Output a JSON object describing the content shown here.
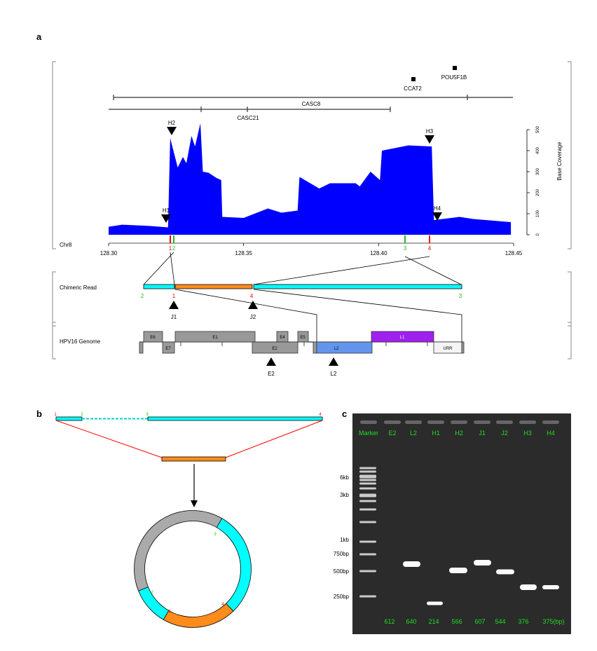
{
  "panels": {
    "a": "a",
    "b": "b",
    "c": "c"
  },
  "genes": {
    "pou5f1b": "POU5F1B",
    "ccat2": "CCAT2",
    "casc8": "CASC8",
    "casc21": "CASC21"
  },
  "chart_data": {
    "type": "area",
    "ylabel": "Base Coverage",
    "xlabel_track": "Chr8",
    "xlim": [
      128.3,
      128.45
    ],
    "ylim": [
      0,
      500
    ],
    "x_ticks": [
      "128.30",
      "128.35",
      "128.40",
      "128.45"
    ],
    "y_ticks": [
      "0",
      "100",
      "200",
      "300",
      "400",
      "500"
    ],
    "color": "#0000ff",
    "coverage": [
      [
        128.3,
        38
      ],
      [
        128.305,
        48
      ],
      [
        128.315,
        42
      ],
      [
        128.322,
        35
      ],
      [
        128.3228,
        460
      ],
      [
        128.3256,
        320
      ],
      [
        128.3275,
        370
      ],
      [
        128.3288,
        340
      ],
      [
        128.3307,
        470
      ],
      [
        128.332,
        420
      ],
      [
        128.334,
        530
      ],
      [
        128.3349,
        300
      ],
      [
        128.337,
        295
      ],
      [
        128.34,
        270
      ],
      [
        128.3417,
        260
      ],
      [
        128.3421,
        85
      ],
      [
        128.35,
        80
      ],
      [
        128.359,
        125
      ],
      [
        128.364,
        105
      ],
      [
        128.37,
        115
      ],
      [
        128.3707,
        275
      ],
      [
        128.378,
        220
      ],
      [
        128.382,
        245
      ],
      [
        128.3915,
        245
      ],
      [
        128.393,
        230
      ],
      [
        128.397,
        300
      ],
      [
        128.4005,
        260
      ],
      [
        128.4012,
        400
      ],
      [
        128.411,
        425
      ],
      [
        128.4197,
        420
      ],
      [
        128.4205,
        70
      ],
      [
        128.43,
        85
      ],
      [
        128.435,
        75
      ],
      [
        128.449,
        60
      ]
    ],
    "hotspots": [
      {
        "label": "H1",
        "pos": 128.321
      },
      {
        "label": "H2",
        "pos": 128.3225
      },
      {
        "label": "H3",
        "pos": 128.4185
      },
      {
        "label": "H4",
        "pos": 128.4215
      }
    ],
    "breakpoints": [
      {
        "label": "1",
        "pos": 128.3226,
        "color": "#ff0000"
      },
      {
        "label": "2",
        "pos": 128.324,
        "color": "#22bb22"
      },
      {
        "label": "3",
        "pos": 128.41,
        "color": "#22bb22"
      },
      {
        "label": "4",
        "pos": 128.419,
        "color": "#ff0000"
      }
    ]
  },
  "chimeric": {
    "label": "Chimeric Read",
    "n1": "1",
    "n2": "2",
    "n3": "3",
    "n4": "4",
    "j1": "J1",
    "j2": "J2"
  },
  "hpv": {
    "label": "HPV16 Genome",
    "e6": "E6",
    "e7": "E7",
    "e1": "E1",
    "e2": "E2",
    "e4": "E4",
    "e5": "E5",
    "l1": "L1",
    "l2": "L2",
    "urr": "URR",
    "mark_e2": "E2",
    "mark_l2": "L2"
  },
  "schematic": {
    "n1": "1",
    "n2": "2",
    "n3": "3",
    "n4": "4",
    "c1": "1",
    "c2": "2",
    "c3": "3",
    "c4": "4"
  },
  "gel": {
    "lanes": [
      "Marker",
      "E2",
      "L2",
      "H1",
      "H2",
      "J1",
      "J2",
      "H3",
      "H4"
    ],
    "sizes": [
      "612",
      "640",
      "214",
      "566",
      "607",
      "544",
      "376",
      "375(bp)"
    ],
    "ladder": [
      "6kb",
      "3kb",
      "1kb",
      "750bp",
      "500bp",
      "250bp"
    ]
  },
  "colors": {
    "cyan": "#00ffff",
    "orange": "#ff8c1a",
    "purple": "#a020f0",
    "l2blue": "#6495ed",
    "gray": "#999999",
    "red": "#ff0000",
    "green": "#22bb22"
  }
}
